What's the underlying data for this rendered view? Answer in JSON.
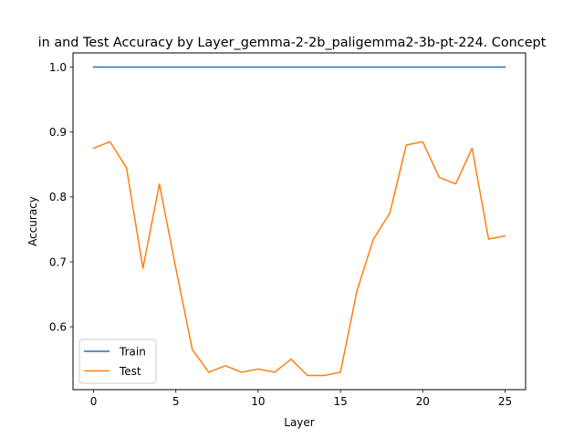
{
  "chart_data": {
    "type": "line",
    "title": "in and Test Accuracy by Layer_gemma-2-2b_paligemma2-3b-pt-224. Concept",
    "xlabel": "Layer",
    "ylabel": "Accuracy",
    "xlim": [
      -1.25,
      26.25
    ],
    "ylim": [
      0.5032,
      1.0218
    ],
    "x_ticks": [
      0,
      5,
      10,
      15,
      20,
      25
    ],
    "y_ticks": [
      0.6,
      0.7,
      0.8,
      0.9,
      1.0
    ],
    "x_tick_labels": [
      "0",
      "5",
      "10",
      "15",
      "20",
      "25"
    ],
    "y_tick_labels": [
      "0.6",
      "0.7",
      "0.8",
      "0.9",
      "1.0"
    ],
    "grid": false,
    "legend_position": "lower-left",
    "x": [
      0,
      1,
      2,
      3,
      4,
      5,
      6,
      7,
      8,
      9,
      10,
      11,
      12,
      13,
      14,
      15,
      16,
      17,
      18,
      19,
      20,
      21,
      22,
      23,
      24,
      25
    ],
    "series": [
      {
        "name": "Train",
        "color": "#1f77b4",
        "values": [
          1,
          1,
          1,
          1,
          1,
          1,
          1,
          1,
          1,
          1,
          1,
          1,
          1,
          1,
          1,
          1,
          1,
          1,
          1,
          1,
          1,
          1,
          1,
          1,
          1,
          1
        ]
      },
      {
        "name": "Test",
        "color": "#ff7f0e",
        "values": [
          0.875,
          0.885,
          0.845,
          0.69,
          0.82,
          0.69,
          0.565,
          0.53,
          0.54,
          0.53,
          0.535,
          0.53,
          0.55,
          0.525,
          0.525,
          0.53,
          0.655,
          0.735,
          0.775,
          0.88,
          0.885,
          0.83,
          0.82,
          0.875,
          0.735,
          0.74
        ]
      }
    ]
  }
}
